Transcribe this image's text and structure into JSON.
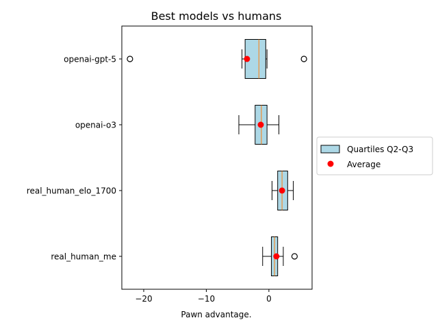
{
  "chart_data": {
    "type": "boxplot",
    "orientation": "horizontal",
    "title": "Best models vs humans",
    "xlabel": "Pawn advantage.",
    "ylabel": "",
    "xlim": [
      -23.5,
      6.9
    ],
    "x_ticks": [
      -20,
      -10,
      0
    ],
    "x_tick_labels": [
      "−20",
      "−10",
      "0"
    ],
    "grid": false,
    "legend": {
      "placement": "outside-right",
      "entries": [
        {
          "label": "Quartiles Q2-Q3",
          "kind": "box"
        },
        {
          "label": "Average",
          "kind": "mean-marker"
        }
      ]
    },
    "categories": [
      "openai-gpt-5",
      "openai-o3",
      "real_human_elo_1700",
      "real_human_me"
    ],
    "boxes": [
      {
        "name": "openai-gpt-5",
        "whisker_low": -4.3,
        "q1": -3.8,
        "median": -1.6,
        "q3": -0.5,
        "whisker_high": -0.3,
        "mean": -3.5,
        "outliers": [
          -22.2,
          5.6
        ]
      },
      {
        "name": "openai-o3",
        "whisker_low": -4.8,
        "q1": -2.2,
        "median": -1.2,
        "q3": -0.3,
        "whisker_high": 1.6,
        "mean": -1.3,
        "outliers": []
      },
      {
        "name": "real_human_elo_1700",
        "whisker_low": 0.5,
        "q1": 1.4,
        "median": 2.1,
        "q3": 3.0,
        "whisker_high": 3.9,
        "mean": 2.1,
        "outliers": []
      },
      {
        "name": "real_human_me",
        "whisker_low": -1.0,
        "q1": 0.4,
        "median": 0.9,
        "q3": 1.4,
        "whisker_high": 2.3,
        "mean": 1.2,
        "outliers": [
          4.1
        ]
      }
    ],
    "colors": {
      "box_fill": "#add8e6",
      "box_edge": "#000000",
      "median": "#ff7f0e",
      "mean": "#ff0000",
      "whisker": "#000000",
      "outlier_edge": "#000000"
    }
  }
}
